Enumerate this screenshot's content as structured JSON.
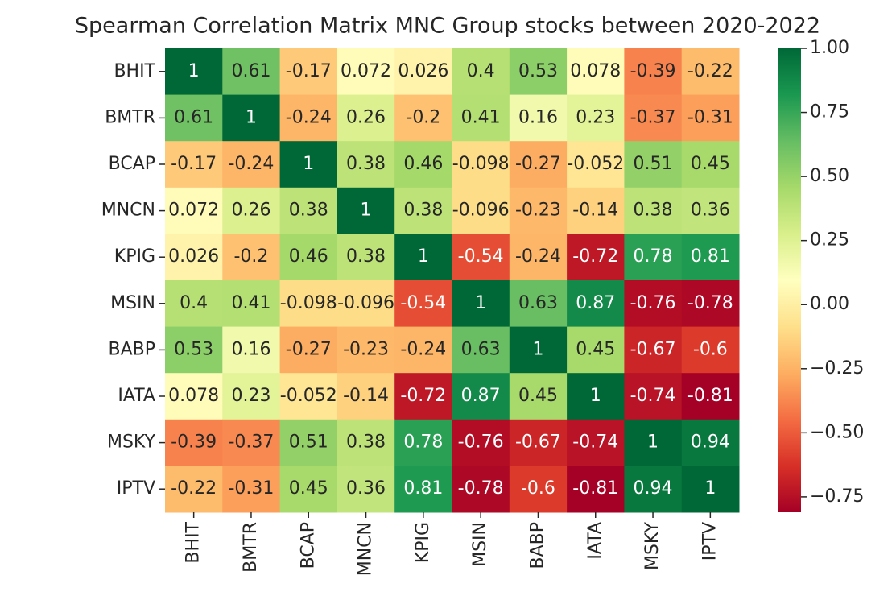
{
  "chart_data": {
    "type": "heatmap",
    "title": "Spearman Correlation Matrix MNC Group stocks between 2020-2022",
    "x_categories": [
      "BHIT",
      "BMTR",
      "BCAP",
      "MNCN",
      "KPIG",
      "MSIN",
      "BABP",
      "IATA",
      "MSKY",
      "IPTV"
    ],
    "y_categories": [
      "BHIT",
      "BMTR",
      "BCAP",
      "MNCN",
      "KPIG",
      "MSIN",
      "BABP",
      "IATA",
      "MSKY",
      "IPTV"
    ],
    "values": [
      [
        1,
        0.61,
        -0.17,
        0.072,
        0.026,
        0.4,
        0.53,
        0.078,
        -0.39,
        -0.22
      ],
      [
        0.61,
        1,
        -0.24,
        0.26,
        -0.2,
        0.41,
        0.16,
        0.23,
        -0.37,
        -0.31
      ],
      [
        -0.17,
        -0.24,
        1,
        0.38,
        0.46,
        -0.098,
        -0.27,
        -0.052,
        0.51,
        0.45
      ],
      [
        0.072,
        0.26,
        0.38,
        1,
        0.38,
        -0.096,
        -0.23,
        -0.14,
        0.38,
        0.36
      ],
      [
        0.026,
        -0.2,
        0.46,
        0.38,
        1,
        -0.54,
        -0.24,
        -0.72,
        0.78,
        0.81
      ],
      [
        0.4,
        0.41,
        -0.098,
        -0.096,
        -0.54,
        1,
        0.63,
        0.87,
        -0.76,
        -0.78
      ],
      [
        0.53,
        0.16,
        -0.27,
        -0.23,
        -0.24,
        0.63,
        1,
        0.45,
        -0.67,
        -0.6
      ],
      [
        0.078,
        0.23,
        -0.052,
        -0.14,
        -0.72,
        0.87,
        0.45,
        1,
        -0.74,
        -0.81
      ],
      [
        -0.39,
        -0.37,
        0.51,
        0.38,
        0.78,
        -0.76,
        -0.67,
        -0.74,
        1,
        0.94
      ],
      [
        -0.22,
        -0.31,
        0.45,
        0.36,
        0.81,
        -0.78,
        -0.6,
        -0.81,
        0.94,
        1
      ]
    ],
    "colormap": "RdYlGn",
    "clim": [
      -0.81,
      1.0
    ],
    "cticks": [
      {
        "value": 1,
        "label": "1.00"
      },
      {
        "value": 0.75,
        "label": "0.75"
      },
      {
        "value": 0.5,
        "label": "0.50"
      },
      {
        "value": 0.25,
        "label": "0.25"
      },
      {
        "value": 0,
        "label": "0.00"
      },
      {
        "value": -0.25,
        "label": "−0.25"
      },
      {
        "value": -0.5,
        "label": "−0.50"
      },
      {
        "value": -0.75,
        "label": "−0.75"
      }
    ]
  }
}
